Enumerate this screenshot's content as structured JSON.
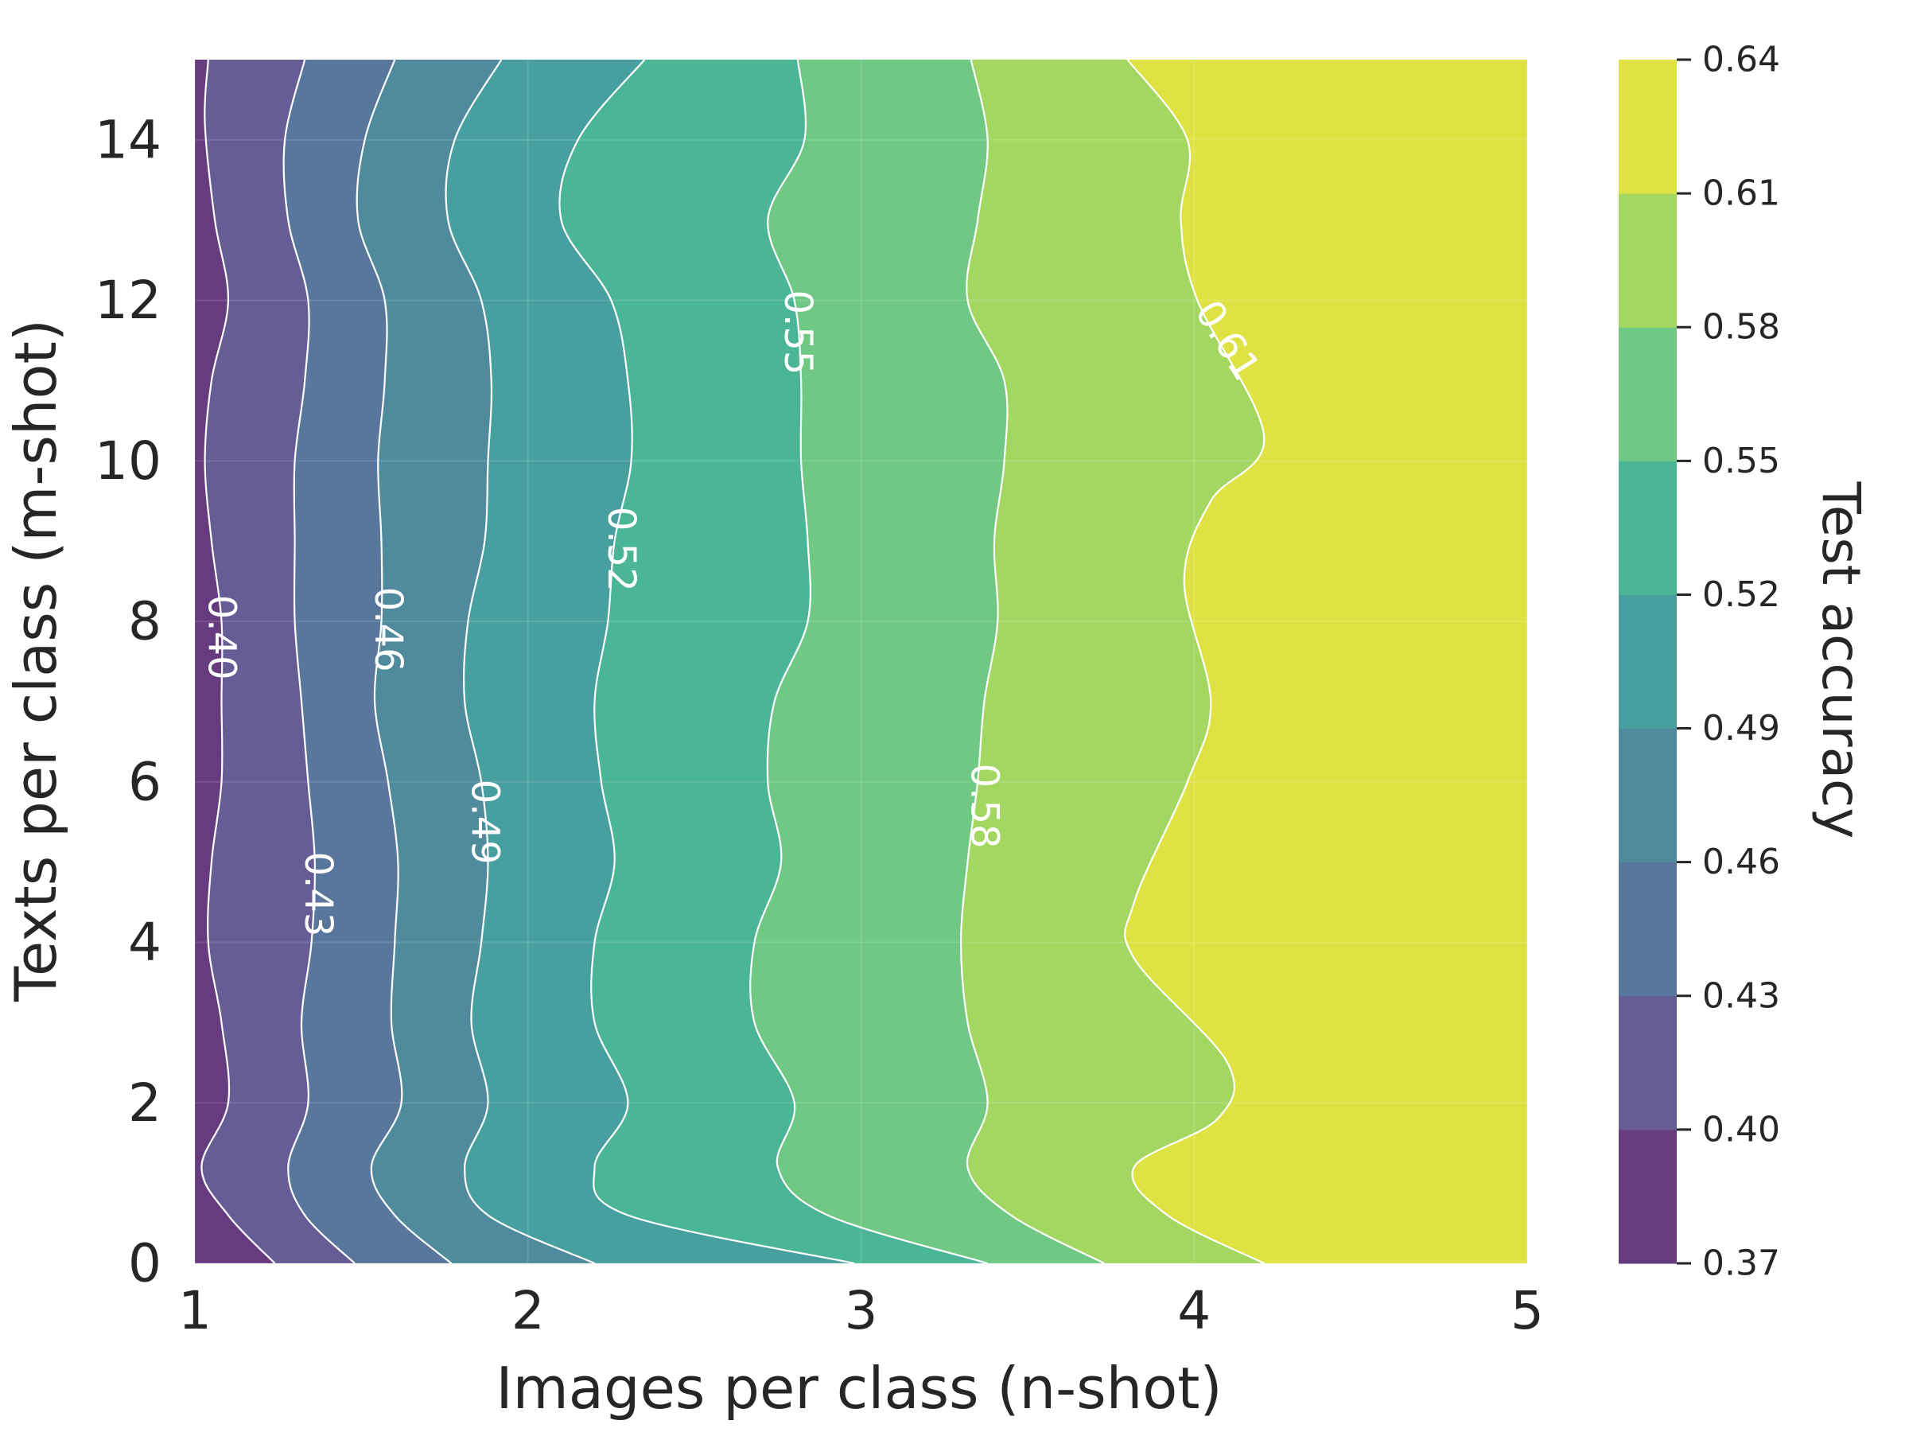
{
  "chart_data": {
    "type": "contour",
    "xlabel": "Images per class (n-shot)",
    "ylabel": "Texts per class (m-shot)",
    "colorbar_label": "Test accuracy",
    "xlim": [
      1,
      5
    ],
    "ylim": [
      0,
      15
    ],
    "x_ticks": [
      1,
      2,
      3,
      4,
      5
    ],
    "y_ticks": [
      0,
      2,
      4,
      6,
      8,
      10,
      12,
      14
    ],
    "levels": [
      0.37,
      0.4,
      0.43,
      0.46,
      0.49,
      0.52,
      0.55,
      0.58,
      0.61,
      0.64
    ],
    "level_labels": [
      "0.37",
      "0.40",
      "0.43",
      "0.46",
      "0.49",
      "0.52",
      "0.55",
      "0.58",
      "0.61",
      "0.64"
    ],
    "band_colors": [
      "#673b7f",
      "#665c96",
      "#59779c",
      "#4f8b9d",
      "#47a09f",
      "#4bb696",
      "#6fc984",
      "#a3d762",
      "#dee343"
    ],
    "colormap": "viridis",
    "contour_line_color": "#ffffff",
    "contours": [
      {
        "level": 0.4,
        "label": "0.40",
        "label_at": [
          1.08,
          7.8
        ],
        "points": [
          [
            1.04,
            15
          ],
          [
            1.03,
            14.2
          ],
          [
            1.06,
            13
          ],
          [
            1.1,
            12
          ],
          [
            1.05,
            11
          ],
          [
            1.03,
            10
          ],
          [
            1.05,
            9
          ],
          [
            1.08,
            8
          ],
          [
            1.08,
            7
          ],
          [
            1.08,
            6
          ],
          [
            1.05,
            5
          ],
          [
            1.04,
            4
          ],
          [
            1.08,
            3
          ],
          [
            1.1,
            2
          ],
          [
            1.02,
            1.2
          ],
          [
            1.1,
            0.6
          ],
          [
            1.24,
            0
          ]
        ]
      },
      {
        "level": 0.43,
        "label": "0.43",
        "label_at": [
          1.37,
          4.6
        ],
        "points": [
          [
            1.33,
            15
          ],
          [
            1.27,
            14
          ],
          [
            1.28,
            13
          ],
          [
            1.34,
            12
          ],
          [
            1.33,
            11
          ],
          [
            1.3,
            10
          ],
          [
            1.3,
            9
          ],
          [
            1.3,
            8
          ],
          [
            1.32,
            7
          ],
          [
            1.34,
            6
          ],
          [
            1.36,
            5
          ],
          [
            1.35,
            4
          ],
          [
            1.32,
            3
          ],
          [
            1.34,
            2
          ],
          [
            1.28,
            1.2
          ],
          [
            1.33,
            0.6
          ],
          [
            1.48,
            0
          ]
        ]
      },
      {
        "level": 0.46,
        "label": "0.46",
        "label_at": [
          1.58,
          7.9
        ],
        "points": [
          [
            1.6,
            15
          ],
          [
            1.51,
            14
          ],
          [
            1.49,
            13
          ],
          [
            1.57,
            12
          ],
          [
            1.57,
            11
          ],
          [
            1.55,
            10
          ],
          [
            1.56,
            9
          ],
          [
            1.56,
            8
          ],
          [
            1.54,
            7
          ],
          [
            1.58,
            6
          ],
          [
            1.61,
            5
          ],
          [
            1.6,
            4
          ],
          [
            1.59,
            3
          ],
          [
            1.62,
            2
          ],
          [
            1.53,
            1.2
          ],
          [
            1.6,
            0.6
          ],
          [
            1.77,
            0
          ]
        ]
      },
      {
        "level": 0.49,
        "label": "0.49",
        "label_at": [
          1.87,
          5.5
        ],
        "points": [
          [
            1.92,
            15
          ],
          [
            1.78,
            14
          ],
          [
            1.76,
            13
          ],
          [
            1.86,
            12
          ],
          [
            1.89,
            11
          ],
          [
            1.88,
            10
          ],
          [
            1.87,
            9
          ],
          [
            1.82,
            8
          ],
          [
            1.81,
            7
          ],
          [
            1.86,
            6
          ],
          [
            1.88,
            5
          ],
          [
            1.86,
            4
          ],
          [
            1.83,
            3
          ],
          [
            1.88,
            2
          ],
          [
            1.81,
            1.2
          ],
          [
            1.88,
            0.6
          ],
          [
            2.2,
            0
          ]
        ]
      },
      {
        "level": 0.52,
        "label": "0.52",
        "label_at": [
          2.28,
          8.9
        ],
        "points": [
          [
            2.35,
            15
          ],
          [
            2.15,
            14
          ],
          [
            2.1,
            13
          ],
          [
            2.25,
            12
          ],
          [
            2.3,
            11
          ],
          [
            2.31,
            10
          ],
          [
            2.26,
            9
          ],
          [
            2.24,
            8
          ],
          [
            2.2,
            7
          ],
          [
            2.22,
            6
          ],
          [
            2.26,
            5
          ],
          [
            2.2,
            4
          ],
          [
            2.2,
            3
          ],
          [
            2.3,
            2
          ],
          [
            2.2,
            1.2
          ],
          [
            2.3,
            0.6
          ],
          [
            2.98,
            0
          ]
        ]
      },
      {
        "level": 0.55,
        "label": "0.55",
        "label_at": [
          2.81,
          11.6
        ],
        "points": [
          [
            2.81,
            15
          ],
          [
            2.83,
            14
          ],
          [
            2.72,
            13
          ],
          [
            2.8,
            12
          ],
          [
            2.82,
            11
          ],
          [
            2.82,
            10
          ],
          [
            2.84,
            9
          ],
          [
            2.84,
            8
          ],
          [
            2.74,
            7
          ],
          [
            2.72,
            6
          ],
          [
            2.76,
            5
          ],
          [
            2.68,
            4
          ],
          [
            2.68,
            3
          ],
          [
            2.8,
            2
          ],
          [
            2.75,
            1.2
          ],
          [
            2.9,
            0.6
          ],
          [
            3.38,
            0
          ]
        ]
      },
      {
        "level": 0.58,
        "label": "0.58",
        "label_at": [
          3.37,
          5.7
        ],
        "points": [
          [
            3.33,
            15
          ],
          [
            3.38,
            14
          ],
          [
            3.35,
            13
          ],
          [
            3.32,
            12
          ],
          [
            3.43,
            11
          ],
          [
            3.43,
            10
          ],
          [
            3.4,
            9
          ],
          [
            3.41,
            8
          ],
          [
            3.37,
            7
          ],
          [
            3.35,
            6
          ],
          [
            3.32,
            5
          ],
          [
            3.3,
            4
          ],
          [
            3.32,
            3
          ],
          [
            3.38,
            2
          ],
          [
            3.32,
            1.2
          ],
          [
            3.45,
            0.6
          ],
          [
            3.73,
            0
          ]
        ]
      },
      {
        "level": 0.61,
        "label": "0.61",
        "label_at": [
          4.1,
          11.5
        ],
        "points": [
          [
            3.8,
            15
          ],
          [
            3.98,
            14
          ],
          [
            3.96,
            13
          ],
          [
            4.01,
            12
          ],
          [
            4.21,
            10.3
          ],
          [
            4.05,
            9.5
          ],
          [
            3.97,
            8.5
          ],
          [
            4.05,
            7
          ],
          [
            3.98,
            6
          ],
          [
            3.82,
            4.5
          ],
          [
            3.82,
            3.8
          ],
          [
            4.1,
            2.5
          ],
          [
            4.07,
            1.8
          ],
          [
            3.82,
            1.2
          ],
          [
            3.92,
            0.6
          ],
          [
            4.21,
            0
          ]
        ]
      }
    ]
  }
}
